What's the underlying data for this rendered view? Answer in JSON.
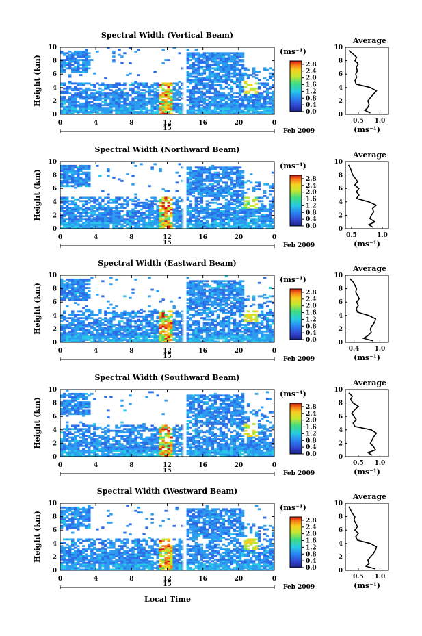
{
  "chart_data": [
    {
      "type": "heatmap",
      "title": "Spectral Width (Vertical Beam)",
      "ylabel": "Height (km)",
      "ylim": [
        0,
        10
      ],
      "xlim": [
        0,
        24
      ],
      "x_ticks": [
        "0",
        "4",
        "8",
        "12",
        "16",
        "20",
        "0"
      ],
      "y_ticks": [
        "0",
        "2",
        "4",
        "6",
        "8",
        "10"
      ],
      "date_label": "15",
      "month_label": "Feb 2009",
      "colorbar": {
        "label": "(ms⁻¹)",
        "ticks": [
          "0.0",
          "0.4",
          "0.8",
          "1.2",
          "1.6",
          "2.0",
          "2.4",
          "2.8"
        ],
        "range": [
          0,
          3.0
        ]
      },
      "avg_title": "Average",
      "avg_xlabel": "(ms⁻¹)",
      "avg_xticks": [
        "0.5",
        "1.0"
      ],
      "avg_xlim": [
        0.2,
        1.2
      ],
      "avg_ylim": [
        0,
        10
      ],
      "avg_profile": {
        "height": [
          0.2,
          0.6,
          1.0,
          1.5,
          2.0,
          2.5,
          3.0,
          3.5,
          4.0,
          4.5,
          5.0,
          5.5,
          6.0,
          6.5,
          7.0,
          7.5,
          8.0,
          8.5,
          9.0,
          9.5
        ],
        "width": [
          0.78,
          0.65,
          0.72,
          0.75,
          0.72,
          0.78,
          0.85,
          0.92,
          0.78,
          0.45,
          0.42,
          0.46,
          0.44,
          0.48,
          0.45,
          0.5,
          0.42,
          0.46,
          0.38,
          0.28
        ]
      }
    },
    {
      "type": "heatmap",
      "title": "Spectral Width (Northward Beam)",
      "ylabel": "Height (km)",
      "ylim": [
        0,
        10
      ],
      "xlim": [
        0,
        24
      ],
      "x_ticks": [
        "0",
        "4",
        "8",
        "12",
        "16",
        "20",
        "0"
      ],
      "y_ticks": [
        "0",
        "2",
        "4",
        "6",
        "8",
        "10"
      ],
      "date_label": "15",
      "month_label": "Feb 2009",
      "colorbar": {
        "label": "(ms⁻¹)",
        "ticks": [
          "0.0",
          "0.4",
          "0.8",
          "1.2",
          "1.6",
          "2.0",
          "2.4",
          "2.8"
        ],
        "range": [
          0,
          3.0
        ]
      },
      "avg_title": "Average",
      "avg_xlabel": "(ms⁻¹)",
      "avg_xticks": [
        "0.5",
        "1.0"
      ],
      "avg_xlim": [
        0.4,
        1.1
      ],
      "avg_ylim": [
        0,
        10
      ],
      "avg_profile": {
        "height": [
          0.2,
          0.6,
          1.0,
          1.5,
          2.0,
          2.5,
          3.0,
          3.5,
          4.0,
          4.5,
          5.0,
          5.5,
          6.0,
          6.5,
          7.0,
          7.5,
          8.0,
          8.5,
          9.0,
          9.5
        ],
        "width": [
          0.85,
          0.78,
          0.88,
          0.8,
          0.82,
          0.86,
          0.84,
          0.9,
          0.78,
          0.58,
          0.62,
          0.58,
          0.62,
          0.55,
          0.6,
          0.56,
          0.52,
          0.5,
          0.48,
          0.45
        ]
      }
    },
    {
      "type": "heatmap",
      "title": "Spectral Width (Eastward Beam)",
      "ylabel": "Height (km)",
      "ylim": [
        0,
        10
      ],
      "xlim": [
        0,
        24
      ],
      "x_ticks": [
        "0",
        "4",
        "8",
        "12",
        "16",
        "20",
        "0"
      ],
      "y_ticks": [
        "0",
        "2",
        "4",
        "6",
        "8",
        "10"
      ],
      "date_label": "15",
      "month_label": "Feb 2009",
      "colorbar": {
        "label": "(ms⁻¹)",
        "ticks": [
          "0.0",
          "0.4",
          "0.8",
          "1.2",
          "1.6",
          "2.0",
          "2.4",
          "2.8"
        ],
        "range": [
          0,
          3.0
        ]
      },
      "avg_title": "Average",
      "avg_xlabel": "(ms⁻¹)",
      "avg_xticks": [
        "0.4",
        "1.0"
      ],
      "avg_xlim": [
        0.2,
        1.2
      ],
      "avg_ylim": [
        0,
        10
      ],
      "avg_profile": {
        "height": [
          0.2,
          0.6,
          1.0,
          1.5,
          2.0,
          2.5,
          3.0,
          3.5,
          4.0,
          4.5,
          5.0,
          5.5,
          6.0,
          6.5,
          7.0,
          7.5,
          8.0,
          8.5,
          9.0,
          9.5
        ],
        "width": [
          0.85,
          0.62,
          0.72,
          0.8,
          0.78,
          0.82,
          0.88,
          0.9,
          0.74,
          0.48,
          0.45,
          0.5,
          0.46,
          0.52,
          0.48,
          0.44,
          0.46,
          0.42,
          0.38,
          0.3
        ]
      }
    },
    {
      "type": "heatmap",
      "title": "Spectral Width (Southward Beam)",
      "ylabel": "Height (km)",
      "ylim": [
        0,
        10
      ],
      "xlim": [
        0,
        24
      ],
      "x_ticks": [
        "0",
        "4",
        "8",
        "12",
        "16",
        "20",
        "0"
      ],
      "y_ticks": [
        "0",
        "2",
        "4",
        "6",
        "8",
        "10"
      ],
      "date_label": "15",
      "month_label": "Feb 2009",
      "colorbar": {
        "label": "(ms⁻¹)",
        "ticks": [
          "0.0",
          "0.4",
          "0.8",
          "1.2",
          "1.6",
          "2.0",
          "2.4",
          "2.8"
        ],
        "range": [
          0,
          3.0
        ]
      },
      "avg_title": "Average",
      "avg_xlabel": "(ms⁻¹)",
      "avg_xticks": [
        "0.5",
        "1.0"
      ],
      "avg_xlim": [
        0.2,
        1.2
      ],
      "avg_ylim": [
        0,
        10
      ],
      "avg_profile": {
        "height": [
          0.2,
          0.6,
          1.0,
          1.5,
          2.0,
          2.5,
          3.0,
          3.5,
          4.0,
          4.5,
          5.0,
          5.5,
          6.0,
          6.5,
          7.0,
          7.5,
          8.0,
          8.5,
          9.0,
          9.5
        ],
        "width": [
          0.82,
          0.72,
          0.9,
          0.85,
          0.78,
          0.82,
          0.86,
          0.92,
          0.8,
          0.42,
          0.38,
          0.45,
          0.4,
          0.35,
          0.42,
          0.5,
          0.38,
          0.32,
          0.36,
          0.28
        ]
      }
    },
    {
      "type": "heatmap",
      "title": "Spectral Width (Westward Beam)",
      "ylabel": "Height (km)",
      "ylim": [
        0,
        10
      ],
      "xlim": [
        0,
        24
      ],
      "x_ticks": [
        "0",
        "4",
        "8",
        "12",
        "16",
        "20",
        "0"
      ],
      "y_ticks": [
        "0",
        "2",
        "4",
        "6",
        "8",
        "10"
      ],
      "date_label": "15",
      "month_label": "Feb 2009",
      "colorbar": {
        "label": "(ms⁻¹)",
        "ticks": [
          "0.0",
          "0.4",
          "0.8",
          "1.2",
          "1.6",
          "2.0",
          "2.4",
          "2.8"
        ],
        "range": [
          0,
          3.0
        ]
      },
      "avg_title": "Average",
      "avg_xlabel": "(ms⁻¹)",
      "avg_xticks": [
        "0.5",
        "1.0"
      ],
      "avg_xlim": [
        0.2,
        1.2
      ],
      "avg_ylim": [
        0,
        10
      ],
      "avg_profile": {
        "height": [
          0.2,
          0.6,
          1.0,
          1.5,
          2.0,
          2.5,
          3.0,
          3.5,
          4.0,
          4.5,
          5.0,
          5.5,
          6.0,
          6.5,
          7.0,
          7.5,
          8.0,
          8.5,
          9.0,
          9.5
        ],
        "width": [
          0.9,
          0.68,
          0.75,
          0.72,
          0.78,
          0.85,
          0.9,
          0.92,
          0.78,
          0.48,
          0.44,
          0.5,
          0.42,
          0.48,
          0.44,
          0.4,
          0.42,
          0.36,
          0.32,
          0.28
        ]
      }
    }
  ],
  "bottom_xlabel": "Local Time"
}
